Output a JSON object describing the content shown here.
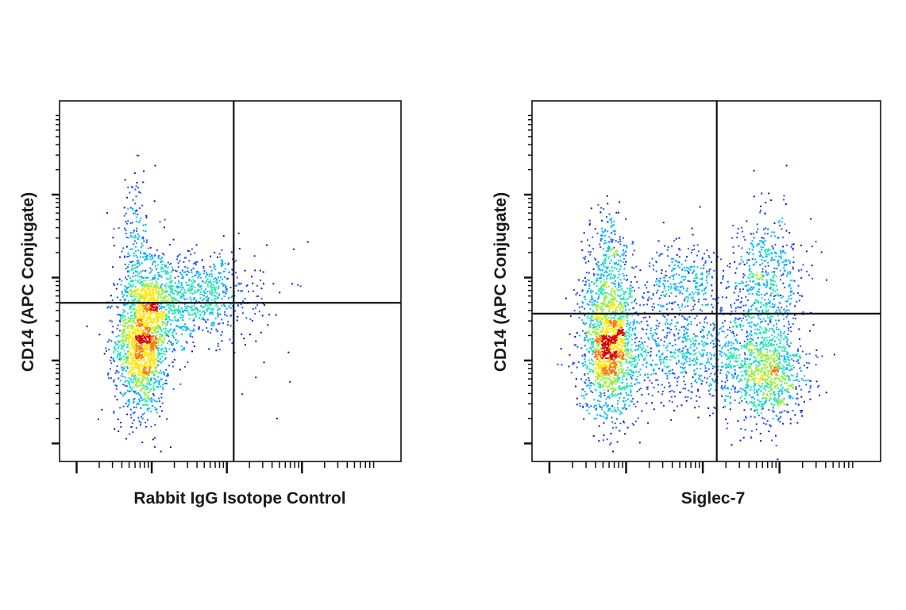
{
  "chart_data": [
    {
      "type": "scatter",
      "subtype": "flow-cytometry-density-dot-plot",
      "xlabel": "Rabbit IgG Isotope Control",
      "ylabel": "CD14 (APC Conjugate)",
      "xlim": [
        0,
        100
      ],
      "ylim": [
        0,
        100
      ],
      "grid": false,
      "legend": "none",
      "tick_labels": "none",
      "gates": {
        "x": 51,
        "y": 44
      },
      "populations": [
        {
          "name": "",
          "center": [
            24,
            33
          ],
          "spread": [
            4,
            10
          ],
          "count": 1600
        },
        {
          "name": "",
          "center": [
            30,
            45
          ],
          "spread": [
            5,
            7
          ],
          "count": 480
        },
        {
          "name": "",
          "center": [
            43,
            46
          ],
          "spread": [
            7,
            6
          ],
          "count": 520
        },
        {
          "name": "",
          "center": [
            22,
            62
          ],
          "spread": [
            3,
            9
          ],
          "count": 160
        },
        {
          "name": "",
          "center": [
            60,
            38
          ],
          "spread": [
            6,
            12
          ],
          "count": 22
        }
      ],
      "colorscale": [
        "#1010c0",
        "#1e50ff",
        "#00b4ff",
        "#1ee6b4",
        "#96f03c",
        "#ffe600",
        "#ff7800",
        "#dc0000"
      ]
    },
    {
      "type": "scatter",
      "subtype": "flow-cytometry-density-dot-plot",
      "xlabel": "Siglec-7",
      "ylabel": "CD14 (APC Conjugate)",
      "xlim": [
        0,
        100
      ],
      "ylim": [
        0,
        100
      ],
      "grid": false,
      "legend": "none",
      "tick_labels": "none",
      "gates": {
        "x": 53,
        "y": 41
      },
      "populations": [
        {
          "name": "",
          "center": [
            22,
            33
          ],
          "spread": [
            4,
            10
          ],
          "count": 1600
        },
        {
          "name": "",
          "center": [
            43,
            30
          ],
          "spread": [
            10,
            7
          ],
          "count": 700
        },
        {
          "name": "",
          "center": [
            67,
            24
          ],
          "spread": [
            6,
            7
          ],
          "count": 900
        },
        {
          "name": "",
          "center": [
            67,
            49
          ],
          "spread": [
            5,
            10
          ],
          "count": 600
        },
        {
          "name": "",
          "center": [
            44,
            50
          ],
          "spread": [
            7,
            6
          ],
          "count": 320
        },
        {
          "name": "",
          "center": [
            22,
            57
          ],
          "spread": [
            3,
            8
          ],
          "count": 220
        }
      ],
      "colorscale": [
        "#1010c0",
        "#1e50ff",
        "#00b4ff",
        "#1ee6b4",
        "#96f03c",
        "#ffe600",
        "#ff7800",
        "#dc0000"
      ]
    }
  ]
}
